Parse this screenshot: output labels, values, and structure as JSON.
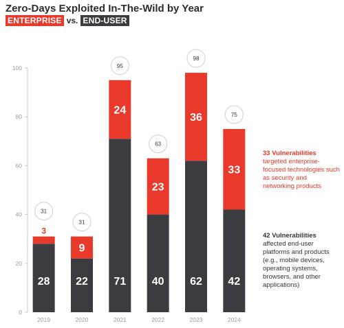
{
  "header": {
    "title": "Zero-Days Exploited In-The-Wild by Year",
    "tag_enterprise": "ENTERPRISE",
    "vs": "vs.",
    "tag_enduser": "END-USER"
  },
  "colors": {
    "enterprise": "#e8392b",
    "enduser": "#3a3c40",
    "text": "#2b2b2b",
    "axis": "#9a9a9a"
  },
  "chart_data": {
    "type": "bar",
    "stacked": true,
    "title": "Zero-Days Exploited In-The-Wild by Year",
    "xlabel": "",
    "ylabel": "",
    "ylim": [
      0,
      100
    ],
    "yticks": [
      0,
      20,
      40,
      60,
      80,
      100
    ],
    "grid": false,
    "categories": [
      "2019",
      "2020",
      "2021",
      "2022",
      "2023",
      "2024"
    ],
    "series": [
      {
        "name": "END-USER",
        "values": [
          28,
          22,
          71,
          40,
          62,
          42
        ]
      },
      {
        "name": "ENTERPRISE",
        "values": [
          3,
          9,
          24,
          23,
          36,
          33
        ]
      }
    ],
    "totals": [
      31,
      31,
      95,
      63,
      98,
      75
    ]
  },
  "notes": {
    "enterprise": {
      "headline": "33 Vulnerabilities",
      "body": "targeted enterprise-focused technologies such as security and networking products"
    },
    "enduser": {
      "headline": "42 Vulnerabilities",
      "body": "affected end-user platforms and products (e.g., mobile devices, operating systems, browsers, and other applications)"
    }
  }
}
